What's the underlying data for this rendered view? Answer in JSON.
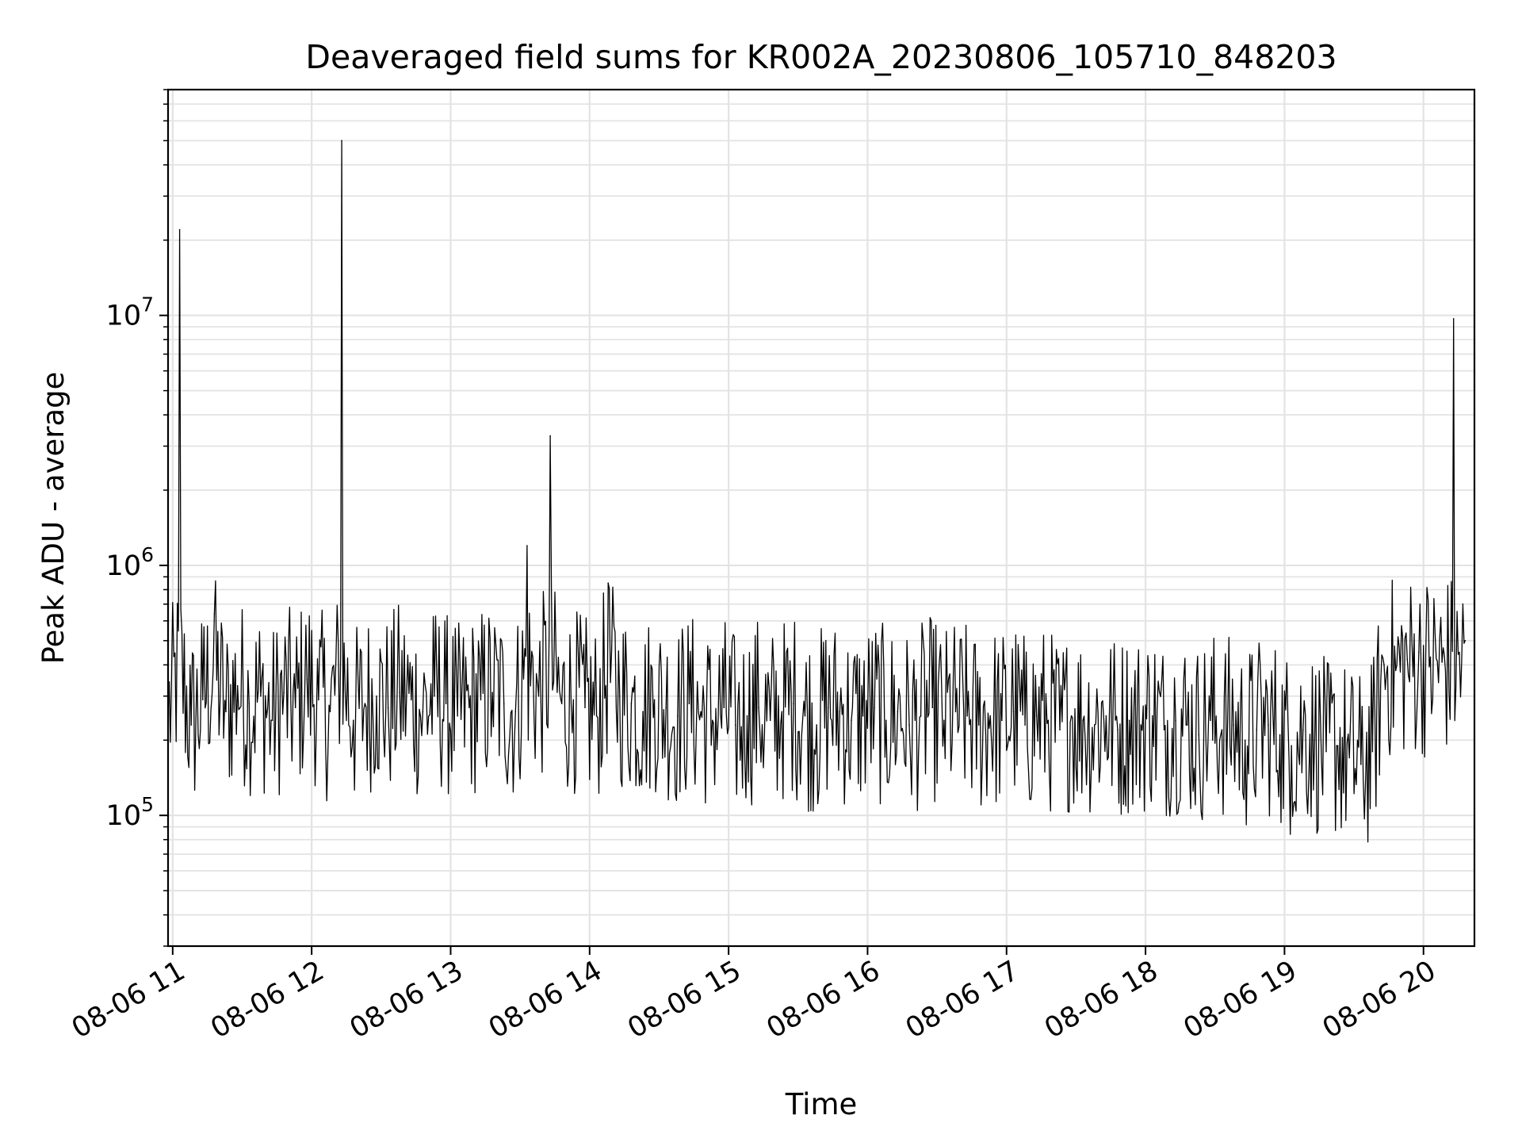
{
  "chart_data": {
    "type": "line",
    "title": "Deaveraged field sums for KR002A_20230806_105710_848203",
    "xlabel": "Time",
    "ylabel": "Peak ADU - average",
    "y_scale": "log",
    "ylim": [
      30000,
      80000000
    ],
    "xlim": [
      "08-06 10:58",
      "08-06 20:22"
    ],
    "grid": true,
    "legend": "none",
    "line_color": "#000000",
    "x_ticks": [
      "08-06 11",
      "08-06 12",
      "08-06 13",
      "08-06 14",
      "08-06 15",
      "08-06 16",
      "08-06 17",
      "08-06 18",
      "08-06 19",
      "08-06 20"
    ],
    "y_ticks": [
      {
        "base": "10",
        "exp": "5",
        "value": 100000
      },
      {
        "base": "10",
        "exp": "6",
        "value": 1000000
      },
      {
        "base": "10",
        "exp": "7",
        "value": 10000000
      }
    ],
    "series": [
      {
        "x": [
          "08-06 10:58",
          "08-06 11:03",
          "08-06 11:08",
          "08-06 11:13",
          "08-06 11:18",
          "08-06 11:23",
          "08-06 11:28",
          "08-06 11:33",
          "08-06 11:38",
          "08-06 11:43",
          "08-06 11:48",
          "08-06 11:53",
          "08-06 11:58",
          "08-06 12:03",
          "08-06 12:08",
          "08-06 12:13",
          "08-06 12:18",
          "08-06 12:23",
          "08-06 12:28",
          "08-06 12:33",
          "08-06 12:38",
          "08-06 12:43",
          "08-06 12:48",
          "08-06 12:53",
          "08-06 12:58",
          "08-06 13:03",
          "08-06 13:08",
          "08-06 13:13",
          "08-06 13:18",
          "08-06 13:23",
          "08-06 13:28",
          "08-06 13:33",
          "08-06 13:38",
          "08-06 13:43",
          "08-06 13:48",
          "08-06 13:53",
          "08-06 13:58",
          "08-06 14:03",
          "08-06 14:08",
          "08-06 14:13",
          "08-06 14:18",
          "08-06 14:23",
          "08-06 14:28",
          "08-06 14:33",
          "08-06 14:38",
          "08-06 14:43",
          "08-06 14:48",
          "08-06 14:53",
          "08-06 14:58",
          "08-06 15:03",
          "08-06 15:08",
          "08-06 15:13",
          "08-06 15:18",
          "08-06 15:23",
          "08-06 15:28",
          "08-06 15:33",
          "08-06 15:38",
          "08-06 15:43",
          "08-06 15:48",
          "08-06 15:53",
          "08-06 15:58",
          "08-06 16:03",
          "08-06 16:08",
          "08-06 16:13",
          "08-06 16:18",
          "08-06 16:23",
          "08-06 16:28",
          "08-06 16:33",
          "08-06 16:38",
          "08-06 16:43",
          "08-06 16:48",
          "08-06 16:53",
          "08-06 16:58",
          "08-06 17:03",
          "08-06 17:08",
          "08-06 17:13",
          "08-06 17:18",
          "08-06 17:23",
          "08-06 17:28",
          "08-06 17:33",
          "08-06 17:38",
          "08-06 17:43",
          "08-06 17:48",
          "08-06 17:53",
          "08-06 17:58",
          "08-06 18:03",
          "08-06 18:08",
          "08-06 18:13",
          "08-06 18:18",
          "08-06 18:23",
          "08-06 18:28",
          "08-06 18:33",
          "08-06 18:38",
          "08-06 18:43",
          "08-06 18:48",
          "08-06 18:53",
          "08-06 18:58",
          "08-06 19:03",
          "08-06 19:08",
          "08-06 19:13",
          "08-06 19:18",
          "08-06 19:23",
          "08-06 19:28",
          "08-06 19:33",
          "08-06 19:38",
          "08-06 19:43",
          "08-06 19:48",
          "08-06 19:53",
          "08-06 19:58",
          "08-06 20:03",
          "08-06 20:08",
          "08-06 20:13",
          "08-06 20:18"
        ],
        "values": [
          250000,
          22000000,
          230000,
          290000,
          640000,
          260000,
          330000,
          280000,
          300000,
          240000,
          310000,
          270000,
          350000,
          290000,
          260000,
          50000000,
          240000,
          280000,
          300000,
          270000,
          310000,
          290000,
          260000,
          300000,
          280000,
          250000,
          270000,
          290000,
          310000,
          280000,
          260000,
          1200000,
          300000,
          3300000,
          280000,
          290000,
          270000,
          250000,
          850000,
          300000,
          280000,
          260000,
          290000,
          270000,
          250000,
          280000,
          260000,
          240000,
          270000,
          230000,
          250000,
          270000,
          240000,
          260000,
          280000,
          250000,
          230000,
          270000,
          260000,
          240000,
          250000,
          270000,
          240000,
          260000,
          230000,
          250000,
          270000,
          240000,
          260000,
          250000,
          230000,
          250000,
          240000,
          260000,
          230000,
          250000,
          240000,
          220000,
          250000,
          240000,
          230000,
          250000,
          220000,
          240000,
          230000,
          250000,
          220000,
          240000,
          230000,
          210000,
          240000,
          220000,
          230000,
          200000,
          220000,
          230000,
          210000,
          190000,
          220000,
          200000,
          180000,
          190000,
          170000,
          160000,
          180000,
          400000,
          380000,
          420000,
          450000,
          430000,
          410000,
          9700000,
          500000
        ]
      }
    ]
  }
}
